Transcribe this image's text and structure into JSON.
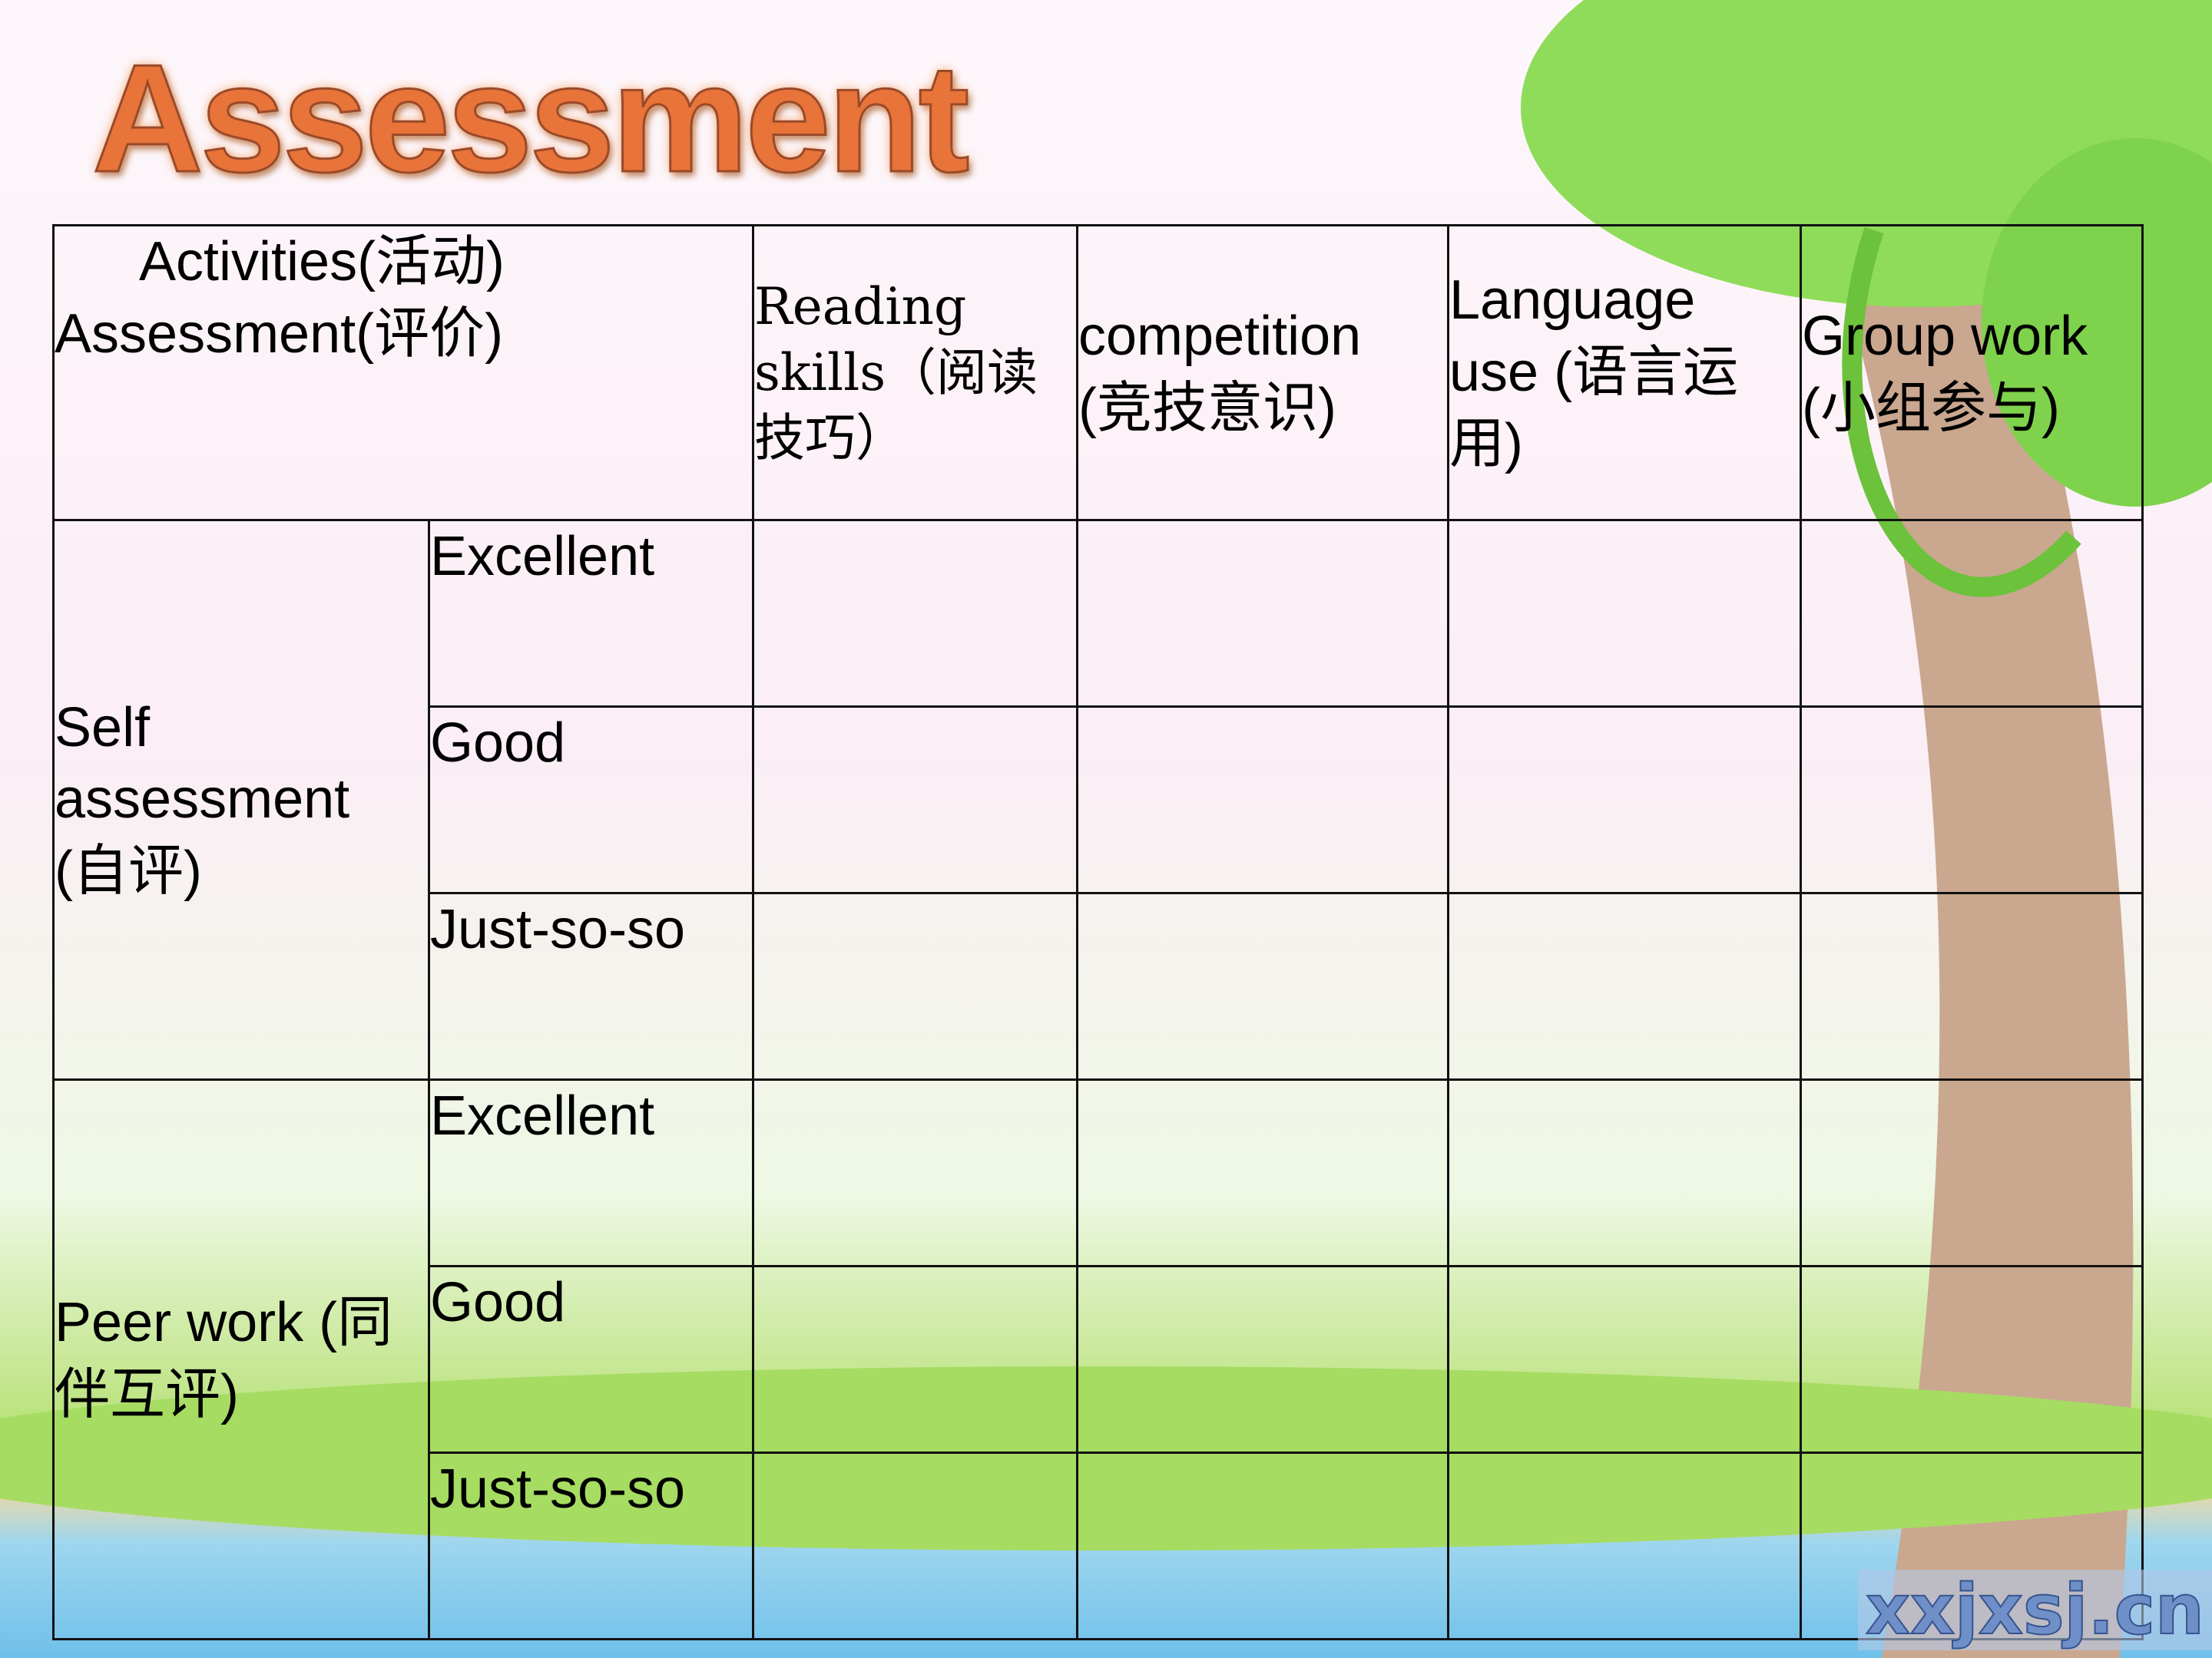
{
  "title": "Assessment",
  "table": {
    "corner": [
      "Activities(活动)",
      "Assessment(评价)"
    ],
    "columns": [
      "Reading skills（阅读技巧）",
      "competition (竞技意识)",
      "Language use (语言运用)",
      "Group work (小组参与)"
    ],
    "groups": [
      {
        "label": "Self assessment (自评)",
        "levels": [
          "Excellent",
          "Good",
          "Just-so-so"
        ]
      },
      {
        "label": "Peer work (同伴互评)",
        "levels": [
          "Excellent",
          "Good",
          "Just-so-so"
        ]
      }
    ]
  },
  "watermark": "xxjxsj.cn"
}
